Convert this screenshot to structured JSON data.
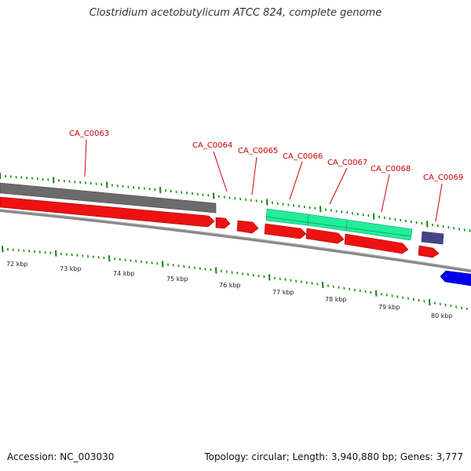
{
  "title": "Clostridium acetobutylicum ATCC 824, complete genome",
  "footer": {
    "accession": "Accession: NC_003030",
    "stats": "Topology: circular; Length: 3,940,880 bp; Genes: 3,777"
  },
  "colors": {
    "forward_cds": "#ee0000",
    "grey_feature": "#666666",
    "teal_feature": "#22ee99",
    "purple_feature": "#444488",
    "reverse_cds": "#0000ee",
    "backbone": "#888888",
    "tick": "#118811",
    "label": "#cc0000"
  },
  "gene_labels": [
    "CA_C0063",
    "CA_C0064",
    "CA_C0065",
    "CA_C0066",
    "CA_C0067",
    "CA_C0068",
    "CA_C0069"
  ],
  "kbp_labels": [
    "72 kbp",
    "73 kbp",
    "74 kbp",
    "75 kbp",
    "76 kbp",
    "77 kbp",
    "78 kbp",
    "79 kbp",
    "80 kbp"
  ]
}
